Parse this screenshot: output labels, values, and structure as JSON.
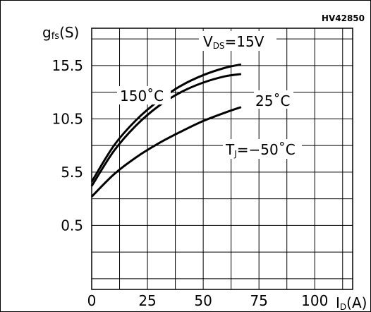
{
  "chart_data": {
    "type": "line",
    "code": "HV42850",
    "ylabel": "g fs(S)",
    "xlabel": "ID(A)",
    "condition": "VDS=15V",
    "xlim": [
      0,
      117
    ],
    "ylim": [
      -5.5,
      19.0
    ],
    "x_ticks": [
      0,
      25,
      50,
      75,
      100
    ],
    "x_tick_labels": [
      "0",
      "25",
      "50",
      "75",
      "100"
    ],
    "y_ticks": [
      0.5,
      5.5,
      10.5,
      15.5
    ],
    "y_tick_labels": [
      "0.5",
      "5.5",
      "10.5",
      "15.5"
    ],
    "grid": true,
    "series": [
      {
        "name": "150˚C",
        "x": [
          0,
          10,
          20,
          30,
          40,
          50,
          60,
          67
        ],
        "y": [
          4.6,
          8.0,
          10.4,
          12.2,
          13.6,
          14.6,
          15.3,
          15.6
        ]
      },
      {
        "name": "25˚C",
        "x": [
          0,
          10,
          20,
          30,
          40,
          50,
          60,
          67
        ],
        "y": [
          4.2,
          7.5,
          9.9,
          11.7,
          13.0,
          13.9,
          14.5,
          14.7
        ]
      },
      {
        "name": "TJ=−50˚C",
        "x": [
          0,
          10,
          20,
          30,
          40,
          50,
          60,
          67
        ],
        "y": [
          3.2,
          5.3,
          6.9,
          8.2,
          9.3,
          10.3,
          11.1,
          11.6
        ]
      }
    ]
  }
}
